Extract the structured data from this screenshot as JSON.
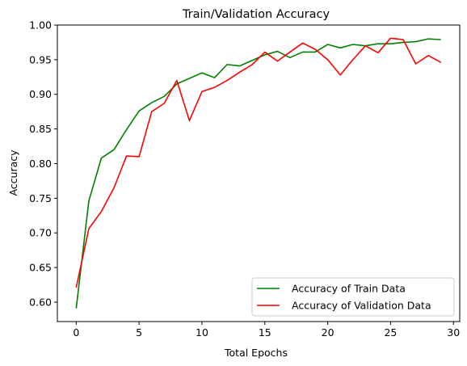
{
  "chart_data": {
    "type": "line",
    "title": "Train/Validation Accuracy",
    "xlabel": "Total Epochs",
    "ylabel": "Accuracy",
    "xlim": [
      -1.5,
      30.5
    ],
    "ylim": [
      0.572,
      1.0
    ],
    "xticks": [
      0,
      5,
      10,
      15,
      20,
      25,
      30
    ],
    "yticks": [
      0.6,
      0.65,
      0.7,
      0.75,
      0.8,
      0.85,
      0.9,
      0.95,
      1.0
    ],
    "ytick_labels": [
      "0.60",
      "0.65",
      "0.70",
      "0.75",
      "0.80",
      "0.85",
      "0.90",
      "0.95",
      "1.00"
    ],
    "grid": false,
    "legend_position": "lower-right",
    "x": [
      0,
      1,
      2,
      3,
      4,
      5,
      6,
      7,
      8,
      9,
      10,
      11,
      12,
      13,
      14,
      15,
      16,
      17,
      18,
      19,
      20,
      21,
      22,
      23,
      24,
      25,
      26,
      27,
      28,
      29
    ],
    "series": [
      {
        "name": "Accuracy of Train Data",
        "color": "#008000",
        "values": [
          0.591,
          0.746,
          0.808,
          0.82,
          0.849,
          0.876,
          0.888,
          0.897,
          0.915,
          0.923,
          0.931,
          0.924,
          0.943,
          0.941,
          0.949,
          0.957,
          0.962,
          0.953,
          0.961,
          0.961,
          0.972,
          0.967,
          0.972,
          0.97,
          0.973,
          0.973,
          0.975,
          0.976,
          0.98,
          0.979
        ]
      },
      {
        "name": "Accuracy of Validation Data",
        "color": "#ff0000",
        "values": [
          0.621,
          0.706,
          0.731,
          0.765,
          0.811,
          0.81,
          0.875,
          0.887,
          0.92,
          0.862,
          0.904,
          0.91,
          0.92,
          0.932,
          0.943,
          0.961,
          0.948,
          0.961,
          0.974,
          0.965,
          0.95,
          0.928,
          0.95,
          0.97,
          0.96,
          0.981,
          0.979,
          0.944,
          0.956,
          0.946
        ]
      }
    ]
  }
}
